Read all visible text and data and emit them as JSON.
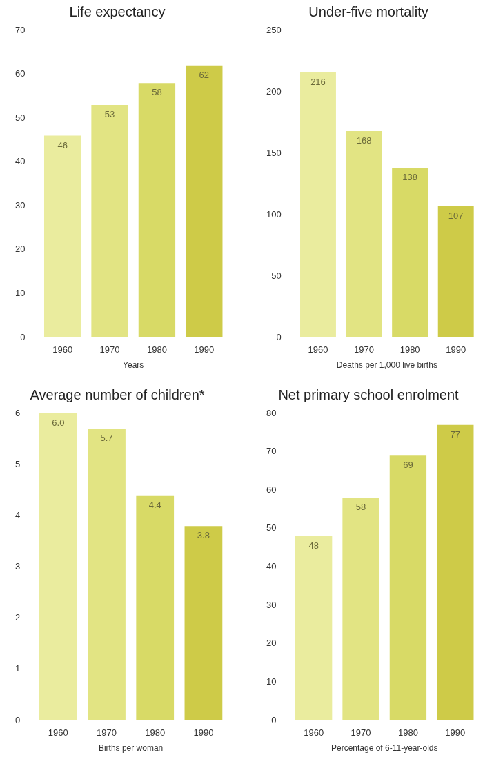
{
  "chart_data": [
    {
      "type": "bar",
      "title": "Life expectancy",
      "xlabel": "Years",
      "categories": [
        "1960",
        "1970",
        "1980",
        "1990"
      ],
      "values": [
        46,
        53,
        58,
        62
      ],
      "colors": [
        "#eaec9e",
        "#e2e483",
        "#d8da66",
        "#cecb48"
      ],
      "ylim": [
        0,
        70
      ],
      "yticks": [
        0,
        10,
        20,
        30,
        40,
        50,
        60,
        70
      ],
      "data_labels": true
    },
    {
      "type": "bar",
      "title": "Under-five mortality",
      "xlabel": "Deaths per 1,000 live births",
      "categories": [
        "1960",
        "1970",
        "1980",
        "1990"
      ],
      "values": [
        216,
        168,
        138,
        107
      ],
      "colors": [
        "#eaec9e",
        "#e2e483",
        "#d8da66",
        "#cecb48"
      ],
      "ylim": [
        0,
        250
      ],
      "yticks": [
        0,
        50,
        100,
        150,
        200,
        250
      ],
      "data_labels": true
    },
    {
      "type": "bar",
      "title": "Average number of children*",
      "xlabel": "Births per woman",
      "categories": [
        "1960",
        "1970",
        "1980",
        "1990"
      ],
      "values": [
        6.0,
        5.7,
        4.4,
        3.8
      ],
      "value_labels": [
        "6.0",
        "5.7",
        "4.4",
        "3.8"
      ],
      "colors": [
        "#eaec9e",
        "#e2e483",
        "#d8da66",
        "#cecb48"
      ],
      "ylim": [
        0,
        6
      ],
      "yticks": [
        0,
        1,
        2,
        3,
        4,
        5,
        6
      ]
    },
    {
      "type": "bar",
      "title": "Net primary school enrolment",
      "xlabel": "Percentage of 6-11-year-olds",
      "categories": [
        "1960",
        "1970",
        "1980",
        "1990"
      ],
      "values": [
        48,
        58,
        69,
        77
      ],
      "colors": [
        "#eaec9e",
        "#e2e483",
        "#d8da66",
        "#cecb48"
      ],
      "ylim": [
        0,
        80
      ],
      "yticks": [
        0,
        10,
        20,
        30,
        40,
        50,
        60,
        70,
        80
      ],
      "data_labels": true
    }
  ]
}
